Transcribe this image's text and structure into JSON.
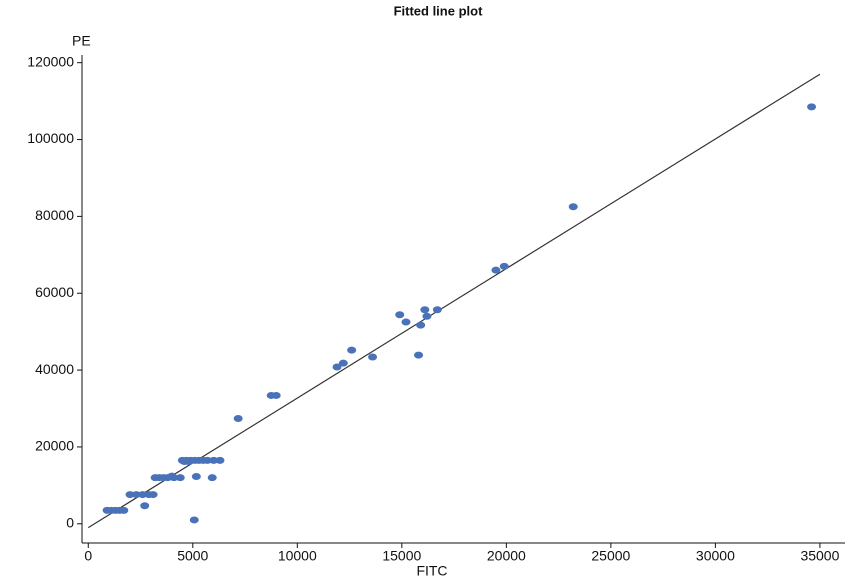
{
  "chart_data": {
    "type": "scatter",
    "title": "Fitted line plot",
    "x_label": "FITC",
    "y_label": "PE",
    "x": [
      34600,
      23200,
      19900,
      19500,
      16700,
      16100,
      16200,
      14900,
      15200,
      15900,
      12600,
      15800,
      13600,
      12200,
      11900,
      8750,
      8990,
      7170,
      5070,
      4500,
      4700,
      4900,
      5100,
      5300,
      5500,
      5700,
      6000,
      6300,
      4600,
      4800,
      5170,
      5930,
      3200,
      3400,
      3600,
      3800,
      4100,
      4400,
      4000,
      2000,
      2300,
      2600,
      2900,
      3100,
      2700,
      900,
      1100,
      1300,
      1500,
      1700
    ],
    "y": [
      108500,
      82500,
      67000,
      66000,
      55700,
      55700,
      54000,
      54400,
      52500,
      51700,
      45200,
      43900,
      43400,
      41800,
      40800,
      33400,
      33400,
      27400,
      1000,
      16500,
      16500,
      16500,
      16500,
      16500,
      16500,
      16500,
      16500,
      16500,
      16200,
      16200,
      12300,
      12000,
      12000,
      12000,
      12000,
      12000,
      12000,
      12000,
      12400,
      7600,
      7600,
      7600,
      7600,
      7600,
      4700,
      3500,
      3500,
      3500,
      3500,
      3500
    ],
    "color": "#4a72b8",
    "fit_line": {
      "x": [
        0,
        35000
      ],
      "y": [
        -1000,
        117000
      ],
      "color": "#333333"
    },
    "xlim": [
      -300,
      36200
    ],
    "ylim": [
      -5000,
      122000
    ],
    "xticks": [
      0,
      5000,
      10000,
      15000,
      20000,
      25000,
      30000,
      35000
    ],
    "yticks": [
      0,
      20000,
      40000,
      60000,
      80000,
      100000,
      120000
    ]
  }
}
